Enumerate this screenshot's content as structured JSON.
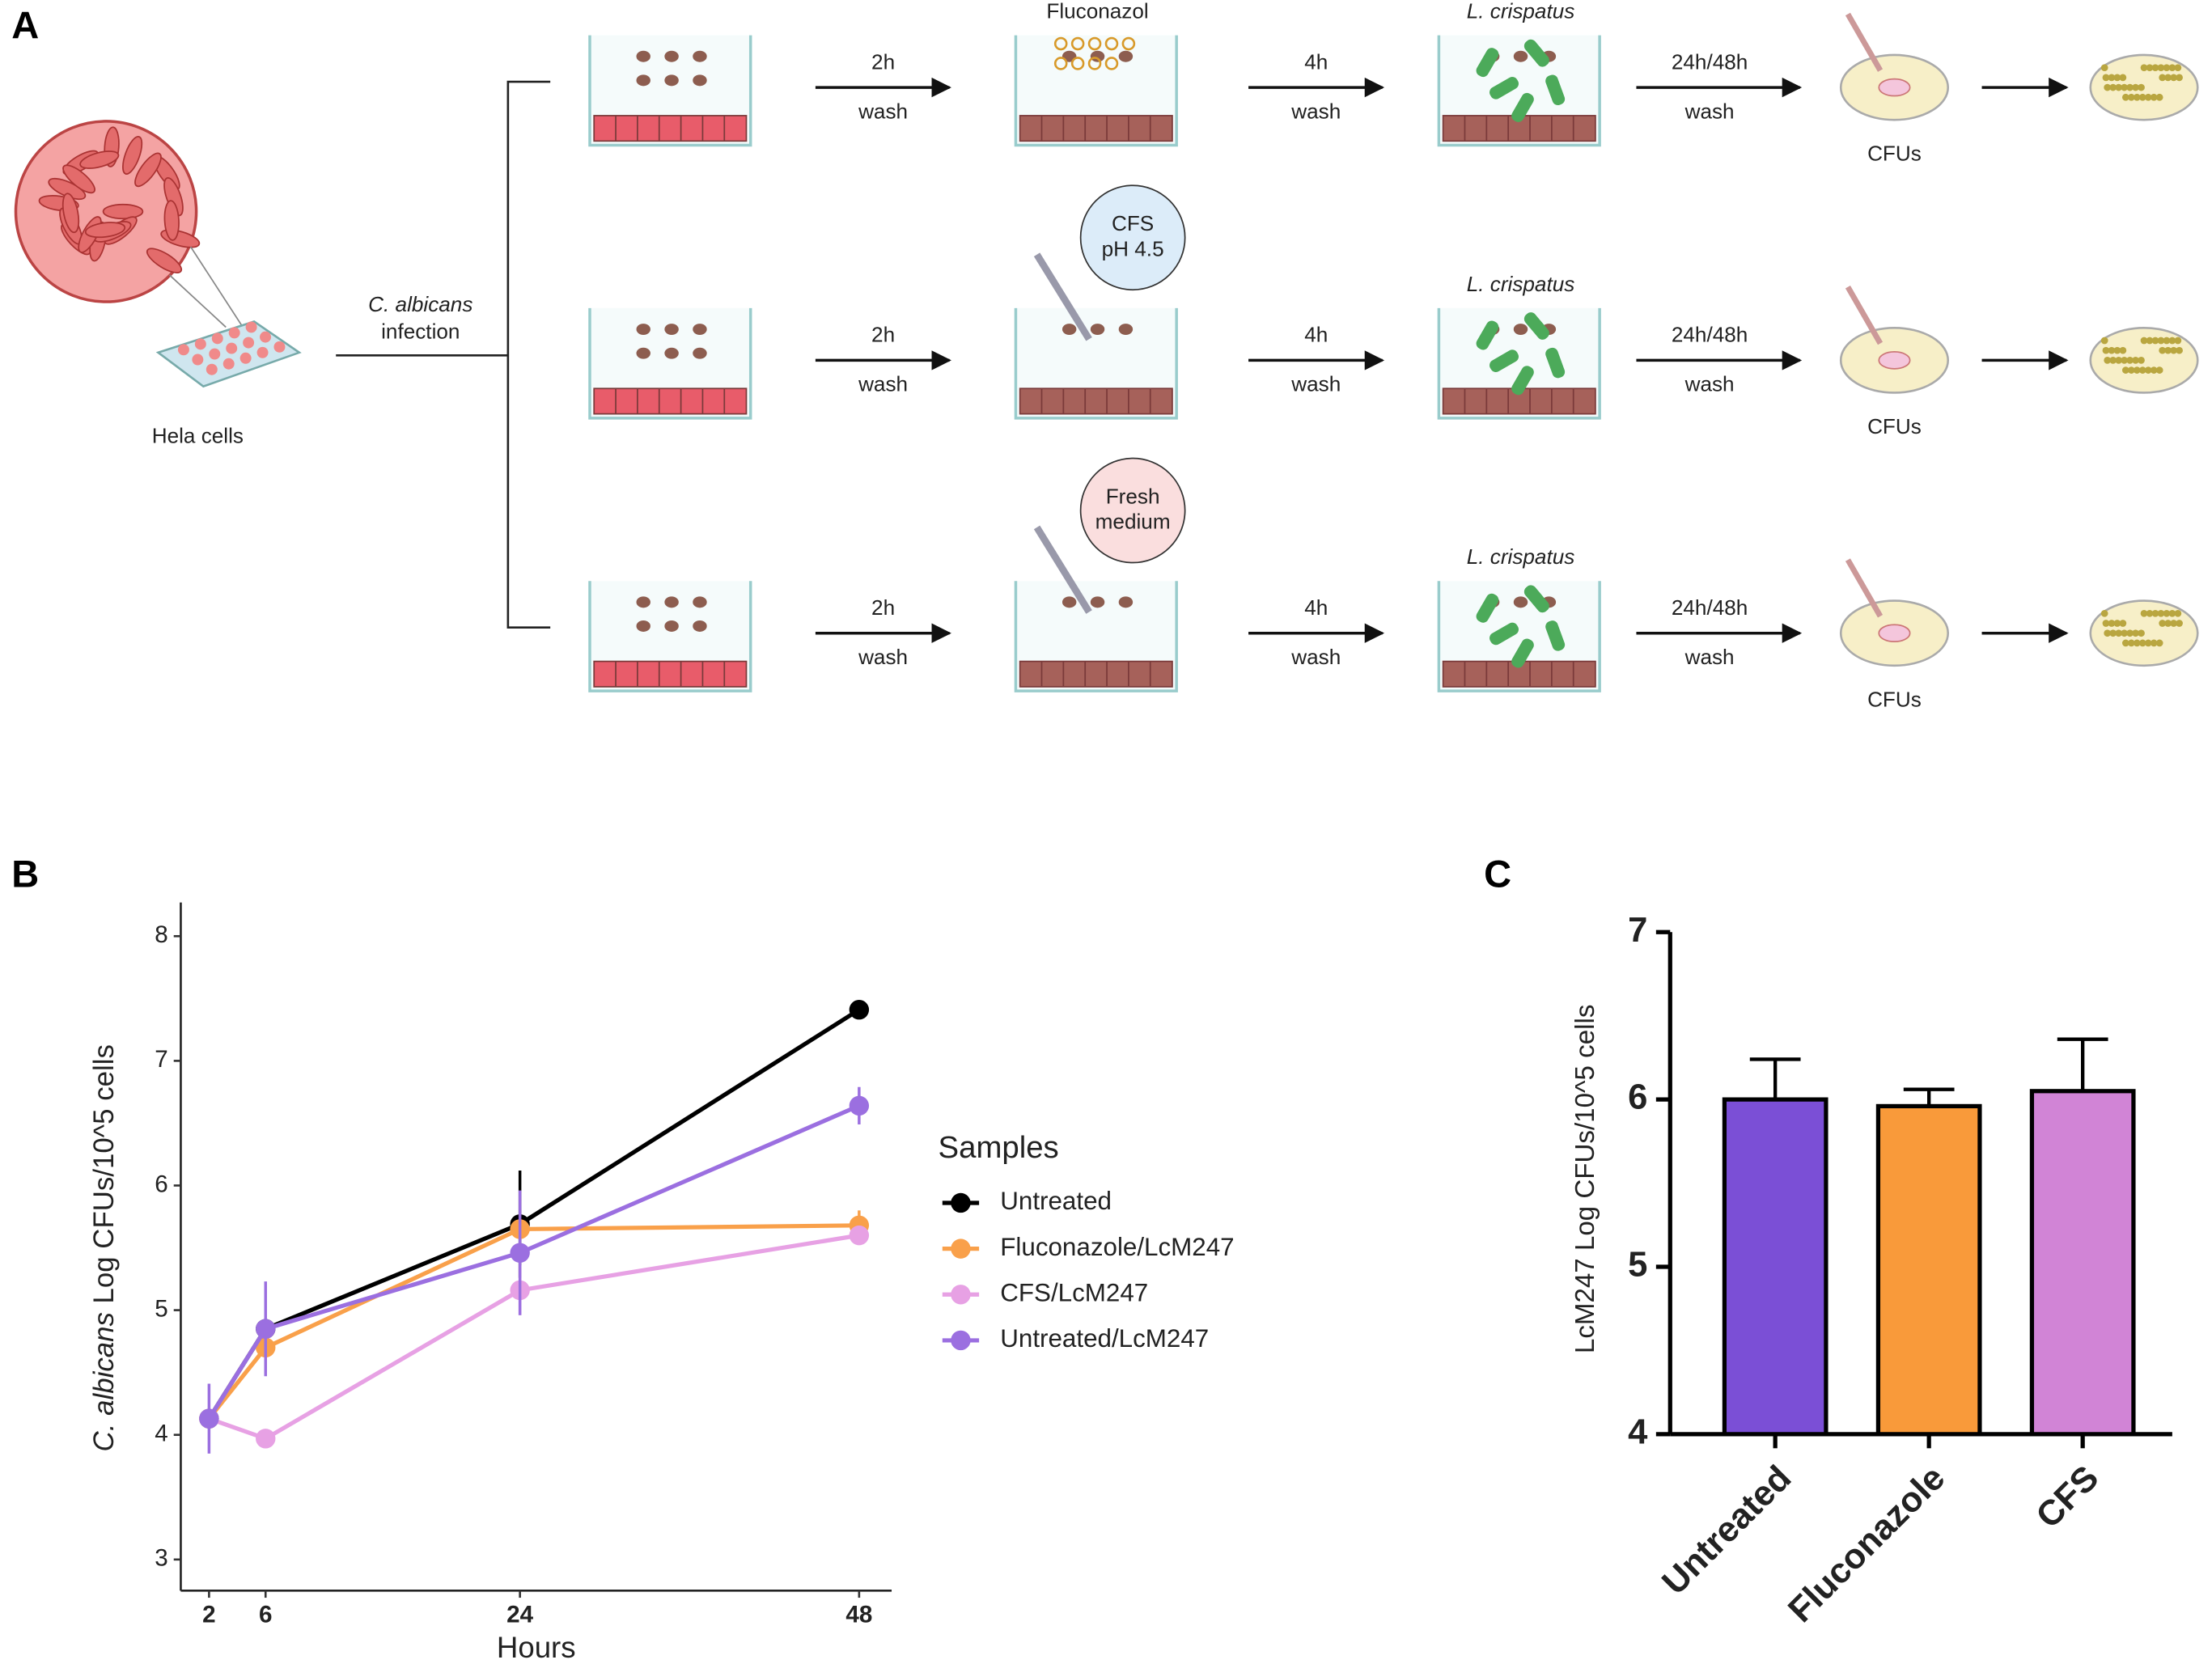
{
  "panels": {
    "a": "A",
    "b": "B",
    "c": "C"
  },
  "diagram": {
    "cell_label": "Hela cells",
    "infection": {
      "species": "C. albicans",
      "word": "infection"
    },
    "rows": [
      {
        "step1": {
          "time": "2h",
          "action": "wash"
        },
        "treatment": [
          "Fluconazol"
        ],
        "step2": {
          "time": "4h",
          "action": "wash"
        },
        "probiotic": "L. crispatus",
        "step3": {
          "time": "24h/48h",
          "action": "wash"
        },
        "readout": "CFUs"
      },
      {
        "step1": {
          "time": "2h",
          "action": "wash"
        },
        "treatment": [
          "CFS",
          "pH 4.5"
        ],
        "step2": {
          "time": "4h",
          "action": "wash"
        },
        "probiotic": "L. crispatus",
        "step3": {
          "time": "24h/48h",
          "action": "wash"
        },
        "readout": "CFUs"
      },
      {
        "step1": {
          "time": "2h",
          "action": "wash"
        },
        "treatment": [
          "Fresh",
          "medium"
        ],
        "step2": {
          "time": "4h",
          "action": "wash"
        },
        "probiotic": "L. crispatus",
        "step3": {
          "time": "24h/48h",
          "action": "wash"
        },
        "readout": "CFUs"
      }
    ]
  },
  "chart_data": [
    {
      "type": "line",
      "xlabel": "Hours",
      "ylabel": {
        "species": "C. albicans",
        "text": "Log CFUs/10^5 cells"
      },
      "legend_title": "Samples",
      "legend": "right",
      "grid": false,
      "x": [
        2,
        6,
        24,
        48
      ],
      "xlim": [
        0,
        50.3
      ],
      "xticks": [
        2,
        6,
        24,
        48
      ],
      "ylim": [
        2.75,
        8.27
      ],
      "yticks": [
        3,
        4,
        5,
        6,
        7,
        8
      ],
      "series": [
        {
          "name": "Untreated",
          "color": "#000000",
          "values": [
            4.13,
            4.85,
            5.69,
            7.41
          ],
          "errors": [
            0.05,
            0.05,
            0.43,
            0.05
          ]
        },
        {
          "name": "Fluconazole/LcM247",
          "color": "#f9a04a",
          "values": [
            4.13,
            4.7,
            5.65,
            5.68
          ],
          "errors": [
            0.05,
            0.2,
            0.05,
            0.12
          ]
        },
        {
          "name": "CFS/LcM247",
          "color": "#e7a1e4",
          "values": [
            4.13,
            3.97,
            5.16,
            5.6
          ],
          "errors": [
            0.05,
            0.05,
            0.2,
            0.07
          ]
        },
        {
          "name": "Untreated/LcM247",
          "color": "#9b6fe0",
          "values": [
            4.13,
            4.85,
            5.46,
            6.64
          ],
          "errors": [
            0.28,
            0.38,
            0.5,
            0.15
          ]
        }
      ]
    },
    {
      "type": "bar",
      "ylabel": "LcM247 Log CFUs/10^5 cells",
      "categories": [
        "Untreated",
        "Fluconazole",
        "CFS"
      ],
      "values": [
        6.0,
        5.96,
        6.05
      ],
      "errors": [
        0.24,
        0.1,
        0.31
      ],
      "colors": [
        "#7b4fd6",
        "#f99a3a",
        "#d184d6"
      ],
      "ylim": [
        4,
        7
      ],
      "yticks": [
        4,
        5,
        6,
        7
      ]
    }
  ]
}
